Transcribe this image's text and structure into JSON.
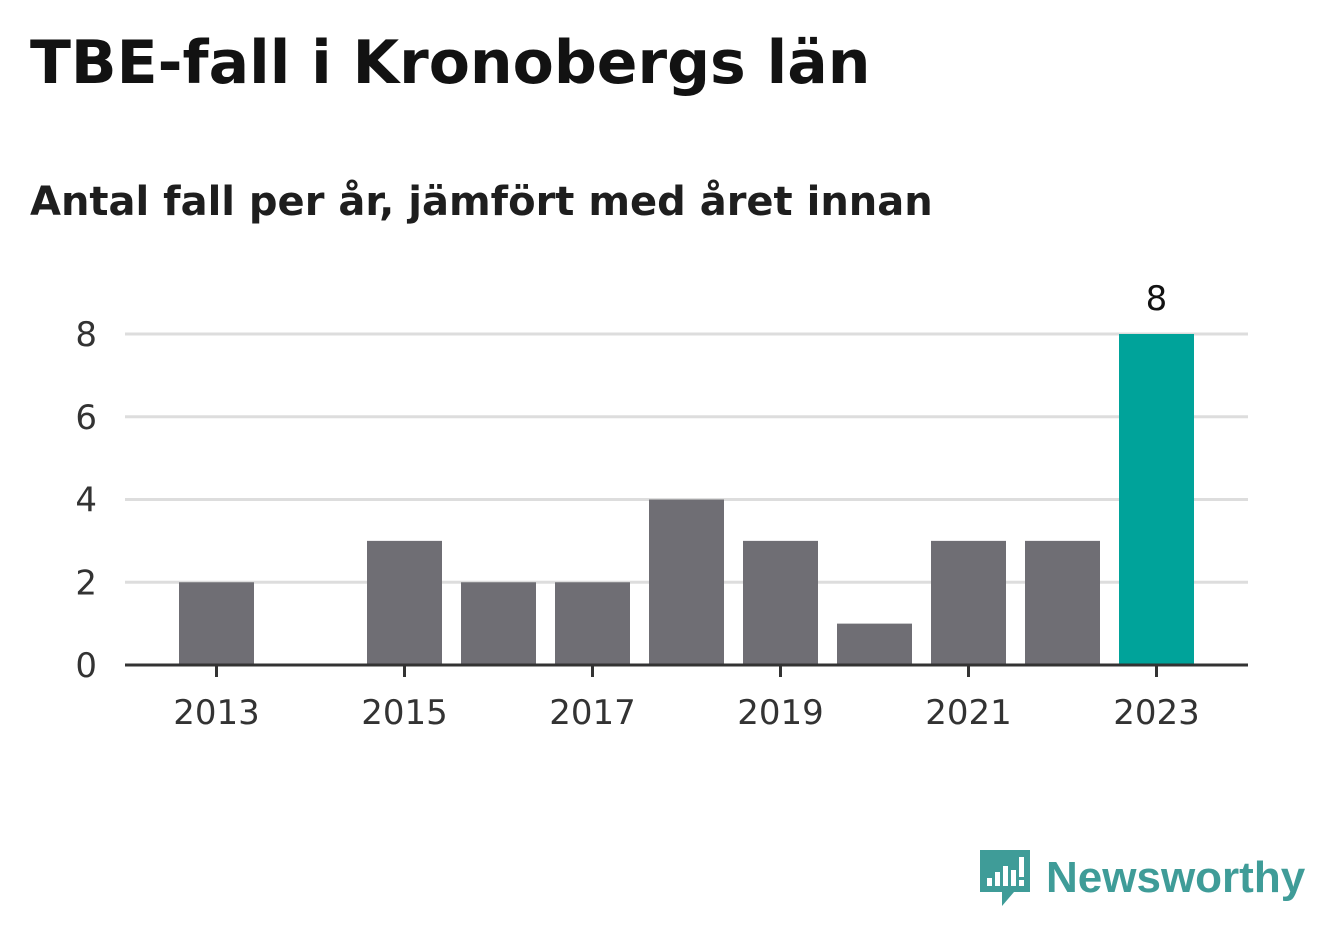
{
  "title": "TBE-fall i Kronobergs län",
  "subtitle": "Antal fall per år, jämfört med året innan",
  "brand": {
    "name": "Newsworthy",
    "icon": "newsworthy-logo-icon",
    "color": "#3f9c98"
  },
  "chart_data": {
    "type": "bar",
    "categories": [
      "2013",
      "2014",
      "2015",
      "2016",
      "2017",
      "2018",
      "2019",
      "2020",
      "2021",
      "2022",
      "2023"
    ],
    "values": [
      2,
      0,
      3,
      2,
      2,
      4,
      3,
      1,
      3,
      3,
      8
    ],
    "x_tick_labels": [
      "2013",
      "2015",
      "2017",
      "2019",
      "2021",
      "2023"
    ],
    "y_ticks": [
      0,
      2,
      4,
      6,
      8
    ],
    "ylim": [
      0,
      8
    ],
    "grid": true,
    "highlight": {
      "category": "2023",
      "label": "8"
    },
    "colors": {
      "bar": "#6f6e74",
      "highlight": "#00a39a",
      "grid": "#dddddd",
      "axis": "#333333"
    }
  }
}
